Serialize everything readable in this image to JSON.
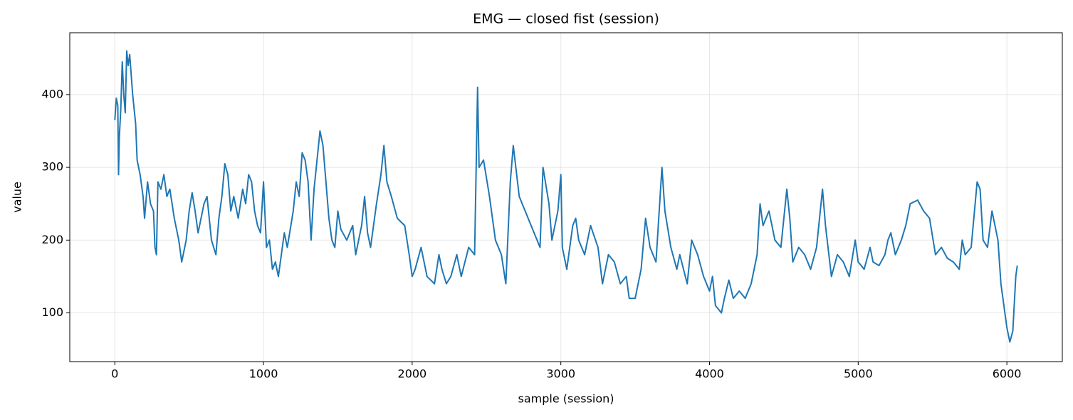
{
  "chart_data": {
    "type": "line",
    "title": "EMG — closed fist (session)",
    "x_label": "sample (session)",
    "y_label": "value",
    "x": [
      0,
      10,
      20,
      25,
      30,
      40,
      50,
      60,
      70,
      80,
      90,
      100,
      120,
      140,
      150,
      170,
      190,
      200,
      220,
      240,
      260,
      270,
      280,
      290,
      310,
      330,
      350,
      370,
      400,
      430,
      450,
      480,
      500,
      520,
      540,
      560,
      600,
      620,
      650,
      680,
      700,
      720,
      740,
      760,
      780,
      800,
      830,
      860,
      880,
      900,
      920,
      940,
      960,
      980,
      1000,
      1020,
      1040,
      1060,
      1080,
      1100,
      1120,
      1140,
      1160,
      1200,
      1220,
      1240,
      1260,
      1280,
      1300,
      1320,
      1340,
      1360,
      1380,
      1400,
      1420,
      1440,
      1460,
      1480,
      1500,
      1520,
      1560,
      1600,
      1620,
      1660,
      1680,
      1700,
      1720,
      1760,
      1790,
      1810,
      1830,
      1860,
      1900,
      1950,
      1980,
      2000,
      2020,
      2060,
      2100,
      2150,
      2180,
      2200,
      2230,
      2260,
      2300,
      2330,
      2380,
      2420,
      2440,
      2450,
      2480,
      2520,
      2560,
      2600,
      2630,
      2660,
      2680,
      2720,
      2760,
      2800,
      2820,
      2860,
      2880,
      2920,
      2940,
      2980,
      3000,
      3010,
      3040,
      3080,
      3100,
      3120,
      3160,
      3200,
      3250,
      3280,
      3320,
      3360,
      3400,
      3440,
      3460,
      3500,
      3540,
      3570,
      3600,
      3640,
      3680,
      3700,
      3740,
      3780,
      3800,
      3850,
      3880,
      3920,
      3960,
      4000,
      4020,
      4040,
      4080,
      4100,
      4130,
      4160,
      4200,
      4240,
      4280,
      4320,
      4340,
      4360,
      4400,
      4440,
      4480,
      4520,
      4540,
      4560,
      4600,
      4640,
      4680,
      4720,
      4760,
      4780,
      4820,
      4860,
      4900,
      4940,
      4980,
      5000,
      5040,
      5080,
      5100,
      5140,
      5180,
      5200,
      5220,
      5250,
      5290,
      5320,
      5350,
      5400,
      5440,
      5480,
      5520,
      5560,
      5600,
      5640,
      5680,
      5700,
      5720,
      5760,
      5800,
      5820,
      5840,
      5870,
      5900,
      5940,
      5960,
      5980,
      6000,
      6020,
      6040,
      6060,
      6070
    ],
    "series": [
      {
        "name": "EMG",
        "color": "#1f77b4",
        "values": [
          365,
          395,
          385,
          290,
          340,
          380,
          445,
          400,
          375,
          460,
          440,
          455,
          400,
          360,
          310,
          290,
          260,
          230,
          280,
          250,
          240,
          190,
          180,
          280,
          270,
          290,
          260,
          270,
          230,
          200,
          170,
          200,
          240,
          265,
          240,
          210,
          250,
          260,
          200,
          180,
          230,
          260,
          305,
          290,
          240,
          260,
          230,
          270,
          250,
          290,
          280,
          240,
          220,
          210,
          280,
          190,
          200,
          160,
          170,
          150,
          180,
          210,
          190,
          240,
          280,
          260,
          320,
          310,
          280,
          200,
          270,
          310,
          350,
          330,
          280,
          230,
          200,
          190,
          240,
          215,
          200,
          220,
          180,
          220,
          260,
          210,
          190,
          250,
          290,
          330,
          280,
          260,
          230,
          220,
          180,
          150,
          160,
          190,
          150,
          140,
          180,
          160,
          140,
          150,
          180,
          150,
          190,
          180,
          410,
          300,
          310,
          260,
          200,
          180,
          140,
          280,
          330,
          260,
          240,
          220,
          210,
          190,
          300,
          250,
          200,
          240,
          290,
          190,
          160,
          220,
          230,
          200,
          180,
          220,
          190,
          140,
          180,
          170,
          140,
          150,
          120,
          120,
          160,
          230,
          190,
          170,
          300,
          240,
          190,
          160,
          180,
          140,
          200,
          180,
          150,
          130,
          150,
          110,
          100,
          120,
          145,
          120,
          130,
          120,
          140,
          180,
          250,
          220,
          240,
          200,
          190,
          270,
          230,
          170,
          190,
          180,
          160,
          190,
          270,
          220,
          150,
          180,
          170,
          150,
          200,
          170,
          160,
          190,
          170,
          165,
          180,
          200,
          210,
          180,
          200,
          220,
          250,
          255,
          240,
          230,
          180,
          190,
          175,
          170,
          160,
          200,
          180,
          190,
          280,
          270,
          200,
          190,
          240,
          200,
          140,
          110,
          80,
          60,
          75,
          150,
          165
        ]
      }
    ],
    "xlim": [
      -303,
      6373
    ],
    "ylim": [
      33,
      485
    ],
    "xticks": [
      0,
      1000,
      2000,
      3000,
      4000,
      5000,
      6000
    ],
    "yticks": [
      100,
      200,
      300,
      400
    ],
    "grid": true
  }
}
